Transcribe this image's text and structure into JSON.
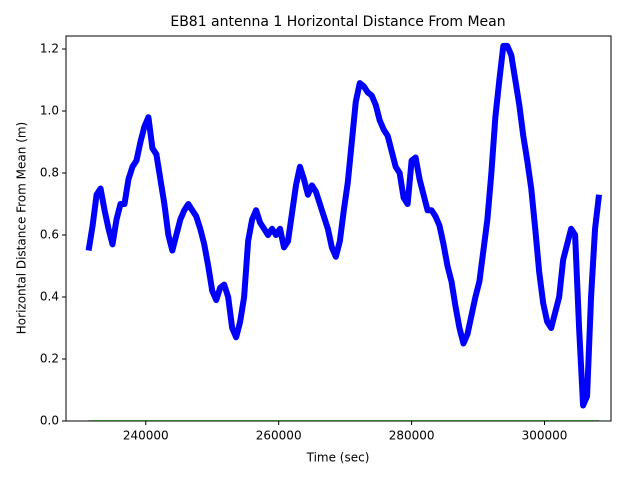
{
  "chart_data": {
    "type": "line",
    "title": "EB81 antenna 1 Horizontal Distance From Mean",
    "x_label": "Time (sec)",
    "y_label": "Horizontal Distance From Mean (m)",
    "x": [
      231400,
      232000,
      232600,
      233200,
      233800,
      234400,
      235000,
      235600,
      236200,
      236800,
      237400,
      238000,
      238600,
      239200,
      239800,
      240400,
      241000,
      241600,
      242200,
      242800,
      243400,
      244000,
      244600,
      245200,
      245800,
      246400,
      247000,
      247600,
      248200,
      248800,
      249400,
      250000,
      250600,
      251200,
      251800,
      252400,
      253000,
      253600,
      254200,
      254800,
      255400,
      256000,
      256600,
      257200,
      257800,
      258400,
      259000,
      259600,
      260200,
      260800,
      261400,
      262000,
      262600,
      263200,
      263800,
      264400,
      265000,
      265600,
      266200,
      266800,
      267400,
      268000,
      268600,
      269200,
      269800,
      270400,
      271000,
      271600,
      272200,
      272800,
      273400,
      274000,
      274600,
      275200,
      275800,
      276400,
      277000,
      277600,
      278200,
      278800,
      279400,
      280000,
      280600,
      281200,
      281800,
      282400,
      283000,
      283600,
      284200,
      284800,
      285400,
      286000,
      286600,
      287200,
      287800,
      288400,
      289000,
      289600,
      290200,
      290800,
      291400,
      292000,
      292600,
      293200,
      293800,
      294400,
      295000,
      295600,
      296200,
      296800,
      297400,
      298000,
      298600,
      299200,
      299800,
      300400,
      301000,
      301600,
      302200,
      302800,
      303400,
      304000,
      304600,
      305200,
      305800,
      306400,
      307000,
      307600,
      308200
    ],
    "series": [
      {
        "color": "#0000ff",
        "width": 6,
        "values": [
          0.55,
          0.63,
          0.73,
          0.75,
          0.68,
          0.62,
          0.57,
          0.65,
          0.7,
          0.7,
          0.78,
          0.82,
          0.84,
          0.9,
          0.95,
          0.98,
          0.88,
          0.86,
          0.78,
          0.7,
          0.6,
          0.55,
          0.6,
          0.65,
          0.68,
          0.7,
          0.68,
          0.66,
          0.62,
          0.57,
          0.5,
          0.42,
          0.39,
          0.43,
          0.44,
          0.4,
          0.3,
          0.27,
          0.32,
          0.4,
          0.58,
          0.65,
          0.68,
          0.64,
          0.62,
          0.6,
          0.62,
          0.6,
          0.62,
          0.56,
          0.58,
          0.67,
          0.76,
          0.82,
          0.78,
          0.73,
          0.76,
          0.74,
          0.7,
          0.66,
          0.62,
          0.56,
          0.53,
          0.58,
          0.68,
          0.77,
          0.9,
          1.03,
          1.09,
          1.08,
          1.06,
          1.05,
          1.02,
          0.97,
          0.94,
          0.92,
          0.87,
          0.82,
          0.8,
          0.72,
          0.7,
          0.84,
          0.85,
          0.78,
          0.73,
          0.68,
          0.68,
          0.66,
          0.63,
          0.57,
          0.5,
          0.45,
          0.37,
          0.3,
          0.25,
          0.28,
          0.34,
          0.4,
          0.45,
          0.55,
          0.65,
          0.8,
          0.98,
          1.1,
          1.21,
          1.21,
          1.18,
          1.1,
          1.02,
          0.92,
          0.84,
          0.75,
          0.62,
          0.48,
          0.38,
          0.32,
          0.3,
          0.35,
          0.4,
          0.52,
          0.57,
          0.62,
          0.6,
          0.3,
          0.05,
          0.08,
          0.4,
          0.62,
          0.73
        ]
      },
      {
        "color": "#66ee66",
        "width": 2,
        "values": [
          0,
          0,
          0,
          0,
          0,
          0,
          0,
          0,
          0,
          0,
          0,
          0,
          0,
          0,
          0,
          0,
          0,
          0,
          0,
          0,
          0,
          0,
          0,
          0,
          0,
          0,
          0,
          0,
          0,
          0,
          0,
          0,
          0,
          0,
          0,
          0,
          0,
          0,
          0,
          0,
          0,
          0,
          0,
          0,
          0,
          0,
          0,
          0,
          0,
          0,
          0,
          0,
          0,
          0,
          0,
          0,
          0,
          0,
          0,
          0,
          0,
          0,
          0,
          0,
          0,
          0,
          0,
          0,
          0,
          0,
          0,
          0,
          0,
          0,
          0,
          0,
          0,
          0,
          0,
          0,
          0,
          0,
          0,
          0,
          0,
          0,
          0,
          0,
          0,
          0,
          0,
          0,
          0,
          0,
          0,
          0,
          0,
          0,
          0,
          0,
          0,
          0,
          0,
          0,
          0,
          0,
          0,
          0,
          0,
          0,
          0,
          0,
          0,
          0,
          0,
          0,
          0,
          0,
          0,
          0,
          0,
          0,
          0,
          0,
          0,
          0,
          0,
          0,
          0
        ]
      }
    ],
    "xlim": [
      228000,
      310000
    ],
    "ylim": [
      0,
      1.242
    ],
    "xticks": [
      240000,
      260000,
      280000,
      300000
    ],
    "yticks": [
      {
        "value": 0,
        "label": "0.0"
      },
      0.2,
      0.4,
      0.6,
      0.8,
      {
        "value": 1,
        "label": "1.0"
      },
      1.2
    ]
  }
}
